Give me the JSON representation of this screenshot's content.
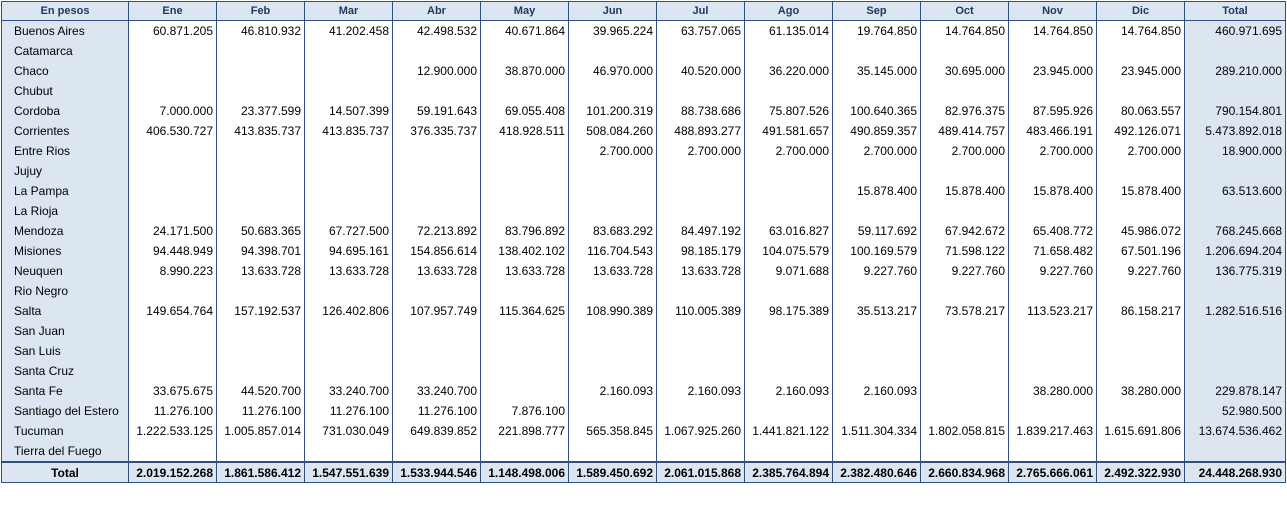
{
  "header": {
    "corner": "En pesos",
    "months": [
      "Ene",
      "Feb",
      "Mar",
      "Abr",
      "May",
      "Jun",
      "Jul",
      "Ago",
      "Sep",
      "Oct",
      "Nov",
      "Dic"
    ],
    "total": "Total"
  },
  "rows": [
    {
      "name": "Buenos Aires",
      "values": [
        "60.871.205",
        "46.810.932",
        "41.202.458",
        "42.498.532",
        "40.671.864",
        "39.965.224",
        "63.757.065",
        "61.135.014",
        "19.764.850",
        "14.764.850",
        "14.764.850",
        "14.764.850"
      ],
      "total": "460.971.695"
    },
    {
      "name": "Catamarca",
      "values": [
        "",
        "",
        "",
        "",
        "",
        "",
        "",
        "",
        "",
        "",
        "",
        ""
      ],
      "total": ""
    },
    {
      "name": "Chaco",
      "values": [
        "",
        "",
        "",
        "12.900.000",
        "38.870.000",
        "46.970.000",
        "40.520.000",
        "36.220.000",
        "35.145.000",
        "30.695.000",
        "23.945.000",
        "23.945.000"
      ],
      "total": "289.210.000"
    },
    {
      "name": "Chubut",
      "values": [
        "",
        "",
        "",
        "",
        "",
        "",
        "",
        "",
        "",
        "",
        "",
        ""
      ],
      "total": ""
    },
    {
      "name": "Cordoba",
      "values": [
        "7.000.000",
        "23.377.599",
        "14.507.399",
        "59.191.643",
        "69.055.408",
        "101.200.319",
        "88.738.686",
        "75.807.526",
        "100.640.365",
        "82.976.375",
        "87.595.926",
        "80.063.557"
      ],
      "total": "790.154.801"
    },
    {
      "name": "Corrientes",
      "values": [
        "406.530.727",
        "413.835.737",
        "413.835.737",
        "376.335.737",
        "418.928.511",
        "508.084.260",
        "488.893.277",
        "491.581.657",
        "490.859.357",
        "489.414.757",
        "483.466.191",
        "492.126.071"
      ],
      "total": "5.473.892.018"
    },
    {
      "name": "Entre Rios",
      "values": [
        "",
        "",
        "",
        "",
        "",
        "2.700.000",
        "2.700.000",
        "2.700.000",
        "2.700.000",
        "2.700.000",
        "2.700.000",
        "2.700.000"
      ],
      "total": "18.900.000"
    },
    {
      "name": "Jujuy",
      "values": [
        "",
        "",
        "",
        "",
        "",
        "",
        "",
        "",
        "",
        "",
        "",
        ""
      ],
      "total": ""
    },
    {
      "name": "La Pampa",
      "values": [
        "",
        "",
        "",
        "",
        "",
        "",
        "",
        "",
        "15.878.400",
        "15.878.400",
        "15.878.400",
        "15.878.400"
      ],
      "total": "63.513.600"
    },
    {
      "name": "La Rioja",
      "values": [
        "",
        "",
        "",
        "",
        "",
        "",
        "",
        "",
        "",
        "",
        "",
        ""
      ],
      "total": ""
    },
    {
      "name": "Mendoza",
      "values": [
        "24.171.500",
        "50.683.365",
        "67.727.500",
        "72.213.892",
        "83.796.892",
        "83.683.292",
        "84.497.192",
        "63.016.827",
        "59.117.692",
        "67.942.672",
        "65.408.772",
        "45.986.072"
      ],
      "total": "768.245.668"
    },
    {
      "name": "Misiones",
      "values": [
        "94.448.949",
        "94.398.701",
        "94.695.161",
        "154.856.614",
        "138.402.102",
        "116.704.543",
        "98.185.179",
        "104.075.579",
        "100.169.579",
        "71.598.122",
        "71.658.482",
        "67.501.196"
      ],
      "total": "1.206.694.204"
    },
    {
      "name": "Neuquen",
      "values": [
        "8.990.223",
        "13.633.728",
        "13.633.728",
        "13.633.728",
        "13.633.728",
        "13.633.728",
        "13.633.728",
        "9.071.688",
        "9.227.760",
        "9.227.760",
        "9.227.760",
        "9.227.760"
      ],
      "total": "136.775.319"
    },
    {
      "name": "Rio Negro",
      "values": [
        "",
        "",
        "",
        "",
        "",
        "",
        "",
        "",
        "",
        "",
        "",
        ""
      ],
      "total": ""
    },
    {
      "name": "Salta",
      "values": [
        "149.654.764",
        "157.192.537",
        "126.402.806",
        "107.957.749",
        "115.364.625",
        "108.990.389",
        "110.005.389",
        "98.175.389",
        "35.513.217",
        "73.578.217",
        "113.523.217",
        "86.158.217"
      ],
      "total": "1.282.516.516"
    },
    {
      "name": "San Juan",
      "values": [
        "",
        "",
        "",
        "",
        "",
        "",
        "",
        "",
        "",
        "",
        "",
        ""
      ],
      "total": ""
    },
    {
      "name": "San Luis",
      "values": [
        "",
        "",
        "",
        "",
        "",
        "",
        "",
        "",
        "",
        "",
        "",
        ""
      ],
      "total": ""
    },
    {
      "name": "Santa Cruz",
      "values": [
        "",
        "",
        "",
        "",
        "",
        "",
        "",
        "",
        "",
        "",
        "",
        ""
      ],
      "total": ""
    },
    {
      "name": "Santa Fe",
      "values": [
        "33.675.675",
        "44.520.700",
        "33.240.700",
        "33.240.700",
        "",
        "2.160.093",
        "2.160.093",
        "2.160.093",
        "2.160.093",
        "",
        "38.280.000",
        "38.280.000"
      ],
      "total": "229.878.147"
    },
    {
      "name": "Santiago del Estero",
      "values": [
        "11.276.100",
        "11.276.100",
        "11.276.100",
        "11.276.100",
        "7.876.100",
        "",
        "",
        "",
        "",
        "",
        "",
        ""
      ],
      "total": "52.980.500"
    },
    {
      "name": "Tucuman",
      "values": [
        "1.222.533.125",
        "1.005.857.014",
        "731.030.049",
        "649.839.852",
        "221.898.777",
        "565.358.845",
        "1.067.925.260",
        "1.441.821.122",
        "1.511.304.334",
        "1.802.058.815",
        "1.839.217.463",
        "1.615.691.806"
      ],
      "total": "13.674.536.462"
    },
    {
      "name": "Tierra del Fuego",
      "values": [
        "",
        "",
        "",
        "",
        "",
        "",
        "",
        "",
        "",
        "",
        "",
        ""
      ],
      "total": ""
    }
  ],
  "footer": {
    "label": "Total",
    "values": [
      "2.019.152.268",
      "1.861.586.412",
      "1.547.551.639",
      "1.533.944.546",
      "1.148.498.006",
      "1.589.450.692",
      "2.061.015.868",
      "2.385.764.894",
      "2.382.480.646",
      "2.660.834.968",
      "2.765.666.061",
      "2.492.322.930"
    ],
    "total": "24.448.268.930"
  }
}
